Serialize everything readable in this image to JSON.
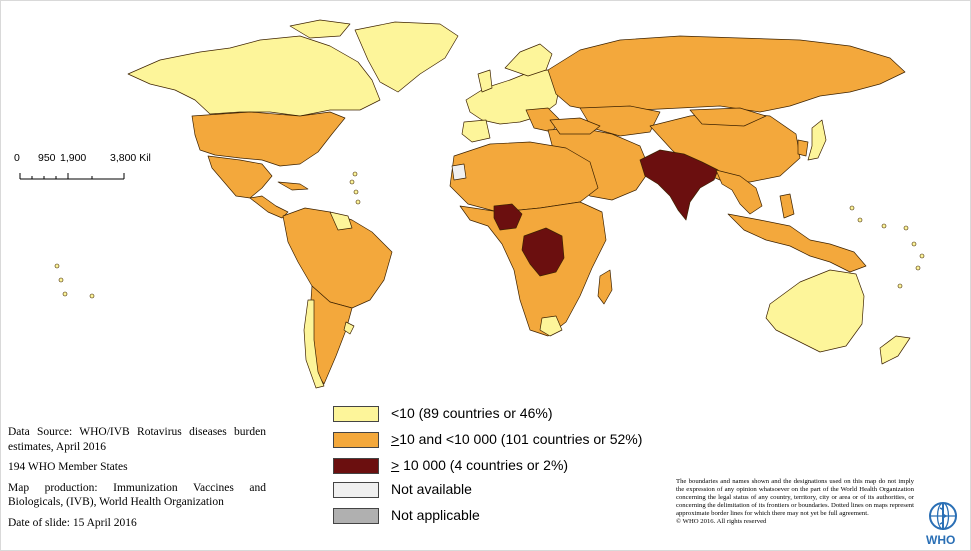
{
  "colors": {
    "low": "#fdf59a",
    "mid": "#f3a83c",
    "high": "#6b0f0f",
    "not_available": "#f0f0f0",
    "not_applicable": "#b0b0b0",
    "border": "#3d2200",
    "who_blue": "#2a6fb5"
  },
  "scale_bar": {
    "labels": [
      "0",
      "950",
      "1,900",
      "3,800 Kil"
    ]
  },
  "legend": {
    "items": [
      {
        "label": "<10 (89 countries or 46%)",
        "color_key": "low"
      },
      {
        "prefix": ">",
        "label": "10 and <10 000 (101 countries or 52%)",
        "color_key": "mid"
      },
      {
        "prefix": ">",
        "label": " 10 000 (4 countries or 2%)",
        "color_key": "high"
      },
      {
        "label": "Not available",
        "color_key": "not_available"
      },
      {
        "label": "Not applicable",
        "color_key": "not_applicable"
      }
    ]
  },
  "info": {
    "source": "Data Source: WHO/IVB Rotavirus diseases burden estimates, April 2016",
    "members": "194 WHO Member States",
    "production": "Map production: Immunization Vaccines and Biologicals, (IVB), World Health Organization",
    "date": "Date of slide: 15 April 2016"
  },
  "disclaimer": {
    "text": "The boundaries and names shown and the designations used on this map do not imply the expression of any opinion whatsoever on the part of the World Health Organization concerning the legal status of any country, territory, city or area or of its authorities, or concerning the delimitation of its frontiers or boundaries. Dotted lines on maps represent approximate border lines for which there may not yet be full agreement.",
    "copyright": "© WHO 2016. All rights reserved"
  },
  "logo": {
    "text": "WHO"
  }
}
